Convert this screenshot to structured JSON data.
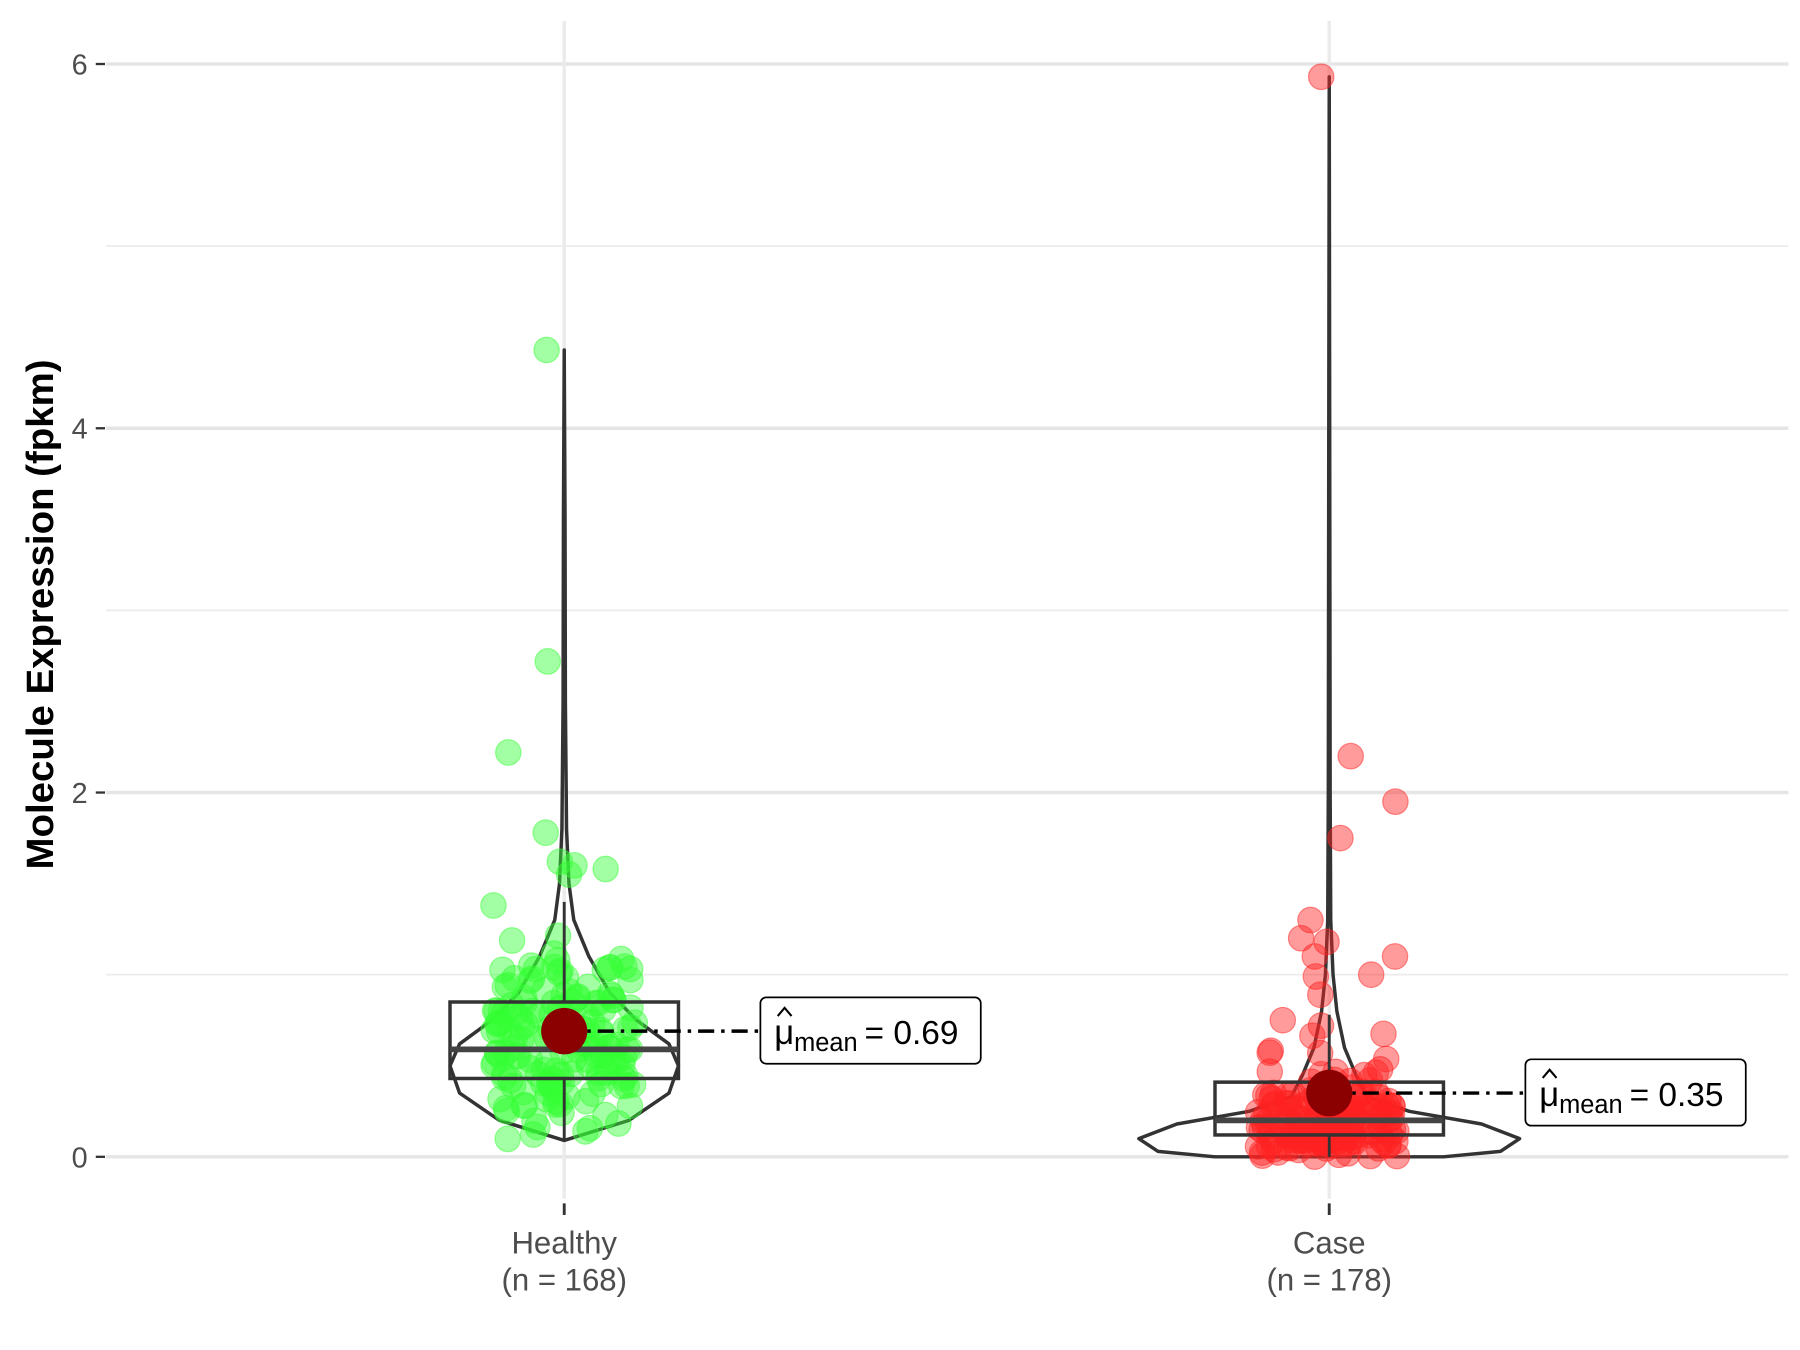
{
  "chart_data": {
    "type": "violin-box-jitter",
    "title": "",
    "xlabel": "",
    "ylabel": "Molecule Expression (fpkm)",
    "ylim": [
      -0.3,
      6.2
    ],
    "yticks": [
      0,
      2,
      4,
      6
    ],
    "ytick_labels": [
      "0",
      "2",
      "4",
      "6"
    ],
    "grid": true,
    "groups": [
      {
        "name": "Healthy",
        "n_label": "(n = 168)",
        "n": 168,
        "color": "#33ff33",
        "mean": 0.69,
        "mean_label_prefix": "mean",
        "mean_label_value": "= 0.69",
        "box": {
          "min": 0.1,
          "q1": 0.43,
          "median": 0.59,
          "q3": 0.85,
          "max": 1.4
        },
        "violin_max": 4.43,
        "violin_min": 0.09,
        "density_profile": [
          [
            0.09,
            0
          ],
          [
            0.2,
            0.34
          ],
          [
            0.35,
            0.55
          ],
          [
            0.5,
            0.6
          ],
          [
            0.62,
            0.55
          ],
          [
            0.75,
            0.38
          ],
          [
            0.9,
            0.24
          ],
          [
            1.1,
            0.13
          ],
          [
            1.3,
            0.05
          ],
          [
            1.5,
            0.025
          ],
          [
            1.8,
            0.012
          ],
          [
            2.5,
            0.006
          ],
          [
            3.5,
            0.004
          ],
          [
            4.43,
            0
          ]
        ],
        "outliers": [
          4.43,
          2.72,
          2.22,
          1.78,
          1.62,
          1.6,
          1.58,
          1.55,
          1.38
        ],
        "bulk_center": 0.62,
        "bulk_sd": 0.28,
        "bulk_range": [
          0.07,
          1.25
        ]
      },
      {
        "name": "Case",
        "n_label": "(n = 178)",
        "n": 178,
        "color": "#ff2222",
        "mean": 0.35,
        "mean_label_prefix": "mean",
        "mean_label_value": "= 0.35",
        "box": {
          "min": 0.0,
          "q1": 0.12,
          "median": 0.2,
          "q3": 0.41,
          "max": 0.78
        },
        "violin_max": 5.93,
        "violin_min": 0.0,
        "density_profile": [
          [
            0.0,
            0.6
          ],
          [
            0.03,
            0.9
          ],
          [
            0.1,
            1.0
          ],
          [
            0.18,
            0.8
          ],
          [
            0.25,
            0.42
          ],
          [
            0.33,
            0.2
          ],
          [
            0.45,
            0.14
          ],
          [
            0.6,
            0.08
          ],
          [
            0.8,
            0.04
          ],
          [
            1.0,
            0.02
          ],
          [
            1.3,
            0.008
          ],
          [
            2.0,
            0.005
          ],
          [
            3.5,
            0.003
          ],
          [
            5.93,
            0
          ]
        ],
        "outliers": [
          5.93,
          2.2,
          1.95,
          1.75,
          1.3,
          1.2,
          1.18,
          1.1,
          1.1,
          1.0,
          0.99,
          0.89,
          0.75,
          0.72
        ],
        "bulk_center": 0.12,
        "bulk_sd": 0.2,
        "bulk_range": [
          0.0,
          0.7
        ]
      }
    ]
  }
}
